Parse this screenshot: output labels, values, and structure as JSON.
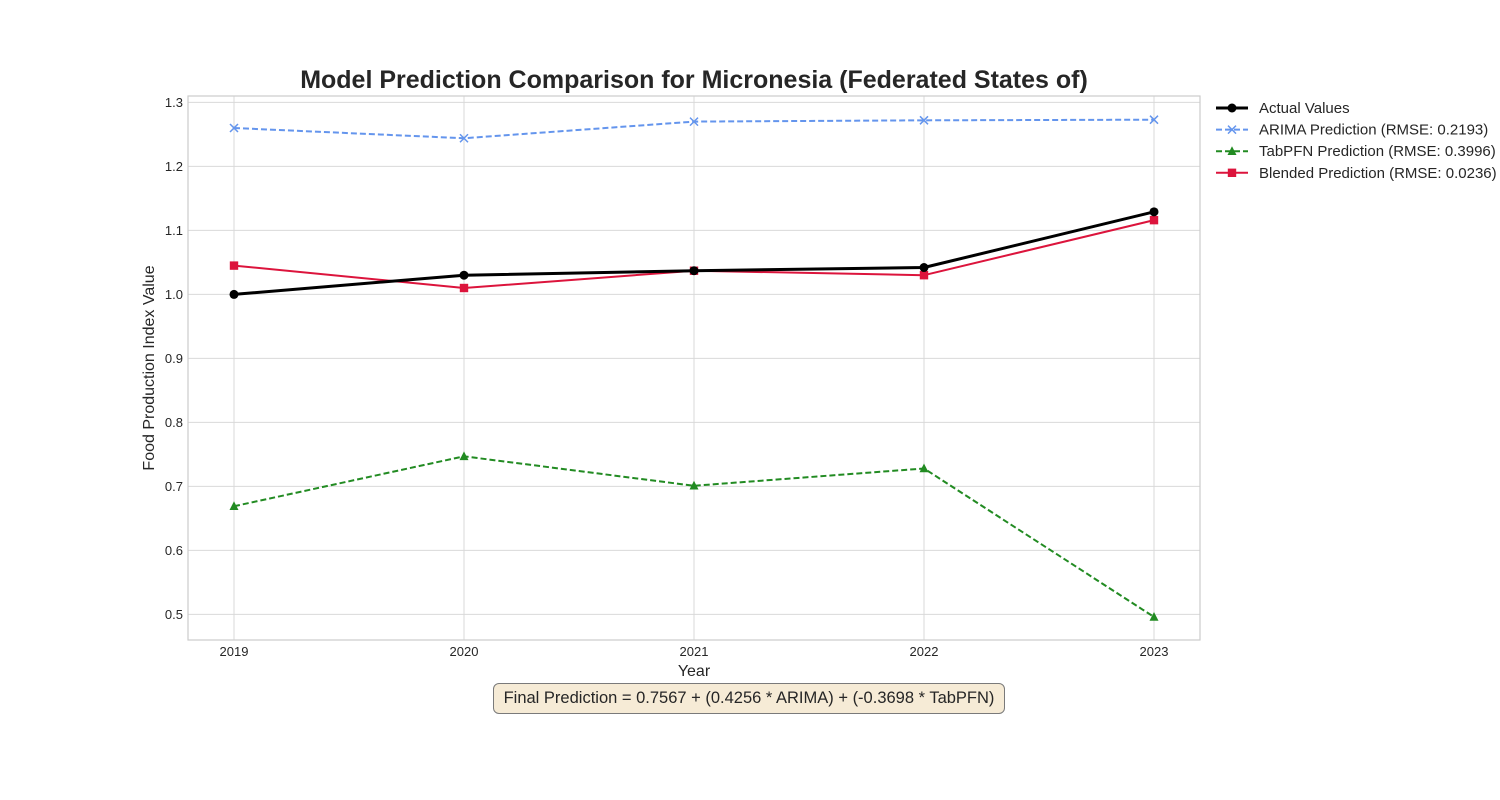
{
  "chart_data": {
    "type": "line",
    "title": "Model Prediction Comparison for Micronesia (Federated States of)",
    "xlabel": "Year",
    "ylabel": "Food Production Index Value",
    "x": [
      2019,
      2020,
      2021,
      2022,
      2023
    ],
    "x_tick_labels": [
      "2019",
      "2020",
      "2021",
      "2022",
      "2023"
    ],
    "xlim": [
      2018.8,
      2023.2
    ],
    "ylim": [
      0.46,
      1.31
    ],
    "y_ticks": [
      0.5,
      0.6,
      0.7,
      0.8,
      0.9,
      1.0,
      1.1,
      1.2,
      1.3
    ],
    "y_tick_labels": [
      "0.5",
      "0.6",
      "0.7",
      "0.8",
      "0.9",
      "1.0",
      "1.1",
      "1.2",
      "1.3"
    ],
    "grid": true,
    "legend_position": "outside top-right",
    "series": [
      {
        "name": "Actual Values",
        "values": [
          1.0,
          1.03,
          1.037,
          1.042,
          1.129
        ],
        "color": "#000000",
        "line_style": "solid",
        "marker": "circle"
      },
      {
        "name": "ARIMA Prediction (RMSE: 0.2193)",
        "values": [
          1.26,
          1.244,
          1.27,
          1.272,
          1.273
        ],
        "color": "#6495ed",
        "line_style": "dashed",
        "marker": "x"
      },
      {
        "name": "TabPFN Prediction (RMSE: 0.3996)",
        "values": [
          0.669,
          0.747,
          0.701,
          0.728,
          0.496
        ],
        "color": "#228b22",
        "line_style": "dashed",
        "marker": "triangle"
      },
      {
        "name": "Blended Prediction (RMSE: 0.0236)",
        "values": [
          1.045,
          1.01,
          1.037,
          1.03,
          1.116
        ],
        "color": "#dc143c",
        "line_style": "solid",
        "marker": "square"
      }
    ],
    "annotation": "Final Prediction = 0.7567 + (0.4256 * ARIMA) + (-0.3698 * TabPFN)"
  }
}
